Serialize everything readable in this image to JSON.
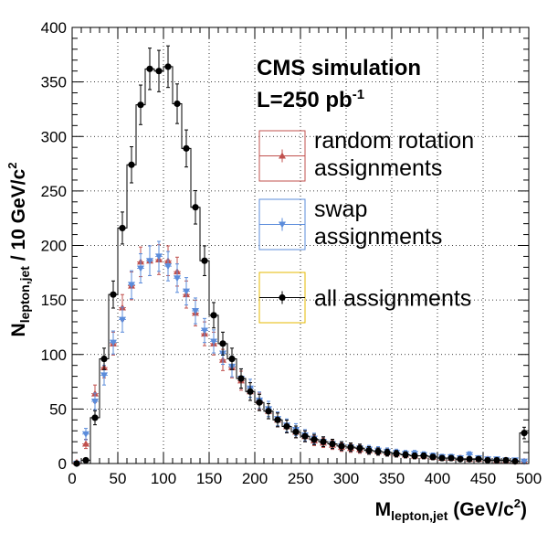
{
  "chart_data": {
    "type": "histogram",
    "title": "CMS simulation",
    "lumi": {
      "prefix": "L=250 pb",
      "sup": "-1"
    },
    "xlabel": {
      "main": "M",
      "sub": "lepton,jet",
      "unit": " (GeV/c",
      "sup": "2",
      "close": ")"
    },
    "ylabel": {
      "main": "N",
      "sub": "lepton,jet",
      "unit": " / 10 GeV/c",
      "sup": "2"
    },
    "xlim": [
      0,
      500
    ],
    "ylim": [
      0,
      400
    ],
    "bin_width": 10,
    "xticks": [
      0,
      50,
      100,
      150,
      200,
      250,
      300,
      350,
      400,
      450,
      500
    ],
    "yticks": [
      0,
      50,
      100,
      150,
      200,
      250,
      300,
      350,
      400
    ],
    "series": [
      {
        "name": "all assignments",
        "legend_lines": [
          "all assignments"
        ],
        "color": "#000000",
        "legend_box_color": "#e6b800",
        "marker": "circle",
        "histogram_line": true,
        "values": [
          0,
          3,
          42,
          96,
          155,
          216,
          274,
          329,
          362,
          360,
          364,
          330,
          289,
          235,
          186,
          136,
          110,
          96,
          78,
          66,
          56,
          48,
          40,
          34,
          29,
          25,
          22,
          20,
          18,
          16,
          15,
          14,
          12,
          11,
          10,
          9,
          8,
          7,
          7,
          6,
          5,
          5,
          4,
          4,
          4,
          3,
          3,
          3,
          2,
          28
        ]
      },
      {
        "name": "random rotation assignments",
        "legend_lines": [
          "random rotation",
          "assignments"
        ],
        "color": "#c0504d",
        "marker": "triangle-up",
        "values": [
          1,
          18,
          64,
          88,
          110,
          143,
          163,
          185,
          186,
          187,
          186,
          176,
          155,
          138,
          119,
          110,
          95,
          88,
          76,
          66,
          57,
          48,
          40,
          34,
          29,
          25,
          21,
          19,
          17,
          15,
          14,
          13,
          12,
          11,
          10,
          9,
          8,
          7,
          7,
          6,
          5,
          5,
          5,
          4,
          4,
          4,
          3,
          3,
          2,
          2
        ]
      },
      {
        "name": "swap assignments",
        "legend_lines": [
          "swap",
          "assignments"
        ],
        "color": "#5b8cdb",
        "marker": "triangle-down",
        "values": [
          0,
          27,
          57,
          81,
          111,
          132,
          164,
          179,
          186,
          190,
          181,
          170,
          158,
          140,
          122,
          112,
          101,
          89,
          78,
          69,
          58,
          50,
          41,
          35,
          31,
          26,
          23,
          20,
          18,
          16,
          15,
          14,
          13,
          12,
          11,
          10,
          9,
          9,
          8,
          7,
          6,
          6,
          5,
          8,
          5,
          4,
          4,
          3,
          3,
          2
        ]
      }
    ]
  }
}
